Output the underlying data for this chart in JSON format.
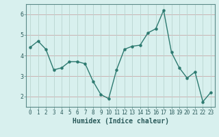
{
  "x": [
    0,
    1,
    2,
    3,
    4,
    5,
    6,
    7,
    8,
    9,
    10,
    11,
    12,
    13,
    14,
    15,
    16,
    17,
    18,
    19,
    20,
    21,
    22,
    23
  ],
  "y": [
    4.4,
    4.7,
    4.3,
    3.3,
    3.4,
    3.7,
    3.7,
    3.6,
    2.75,
    2.1,
    1.9,
    3.3,
    4.3,
    4.45,
    4.5,
    5.1,
    5.3,
    6.2,
    4.15,
    3.4,
    2.9,
    3.2,
    1.75,
    2.2
  ],
  "xlabel": "Humidex (Indice chaleur)",
  "ylim": [
    1.5,
    6.5
  ],
  "yticks": [
    2,
    3,
    4,
    5,
    6
  ],
  "line_color": "#2d7a70",
  "bg_color": "#d8f0ee",
  "grid_color_h": "#c8a8a8",
  "grid_color_v": "#b8d4d0",
  "xlabel_fontsize": 7,
  "tick_fontsize": 5.5
}
